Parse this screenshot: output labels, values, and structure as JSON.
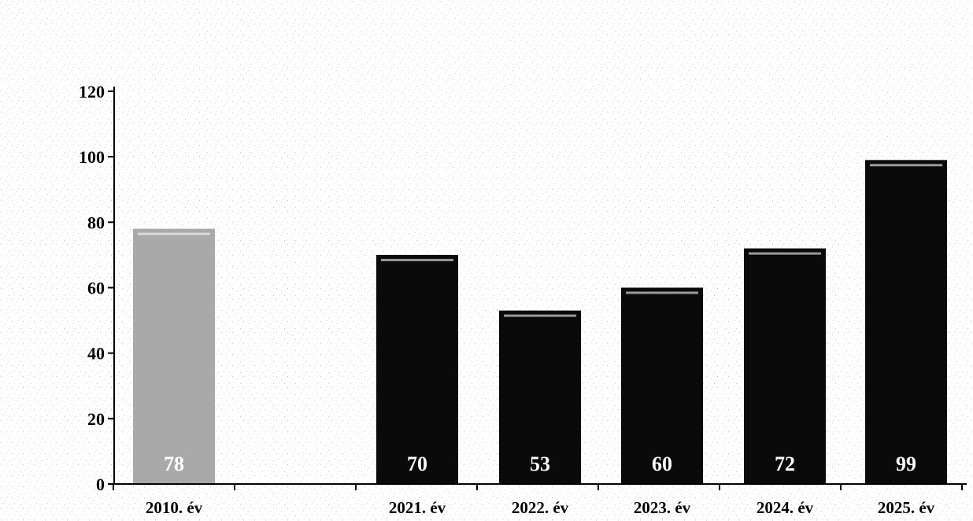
{
  "chart_data": {
    "type": "bar",
    "categories": [
      "2010. év",
      "2021. év",
      "2022. év",
      "2023. év",
      "2024. év",
      "2025. év"
    ],
    "slots": [
      "2010. év",
      "",
      "2021. év",
      "2022. év",
      "2023. év",
      "2024. év",
      "2025. év"
    ],
    "values": [
      78,
      70,
      53,
      60,
      72,
      99
    ],
    "data_labels": [
      "78",
      "70",
      "53",
      "60",
      "72",
      "99"
    ],
    "bar_colors": [
      "#a9a9a9",
      "#0a0a0a",
      "#0a0a0a",
      "#0a0a0a",
      "#0a0a0a",
      "#0a0a0a"
    ],
    "ylim": [
      0,
      120
    ],
    "yticks": [
      0,
      20,
      40,
      60,
      80,
      100,
      120
    ],
    "ytick_labels": [
      "0",
      "20",
      "40",
      "60",
      "80",
      "100",
      "120"
    ],
    "title": "",
    "xlabel": "",
    "ylabel": "",
    "grid": false,
    "legend": "none"
  }
}
